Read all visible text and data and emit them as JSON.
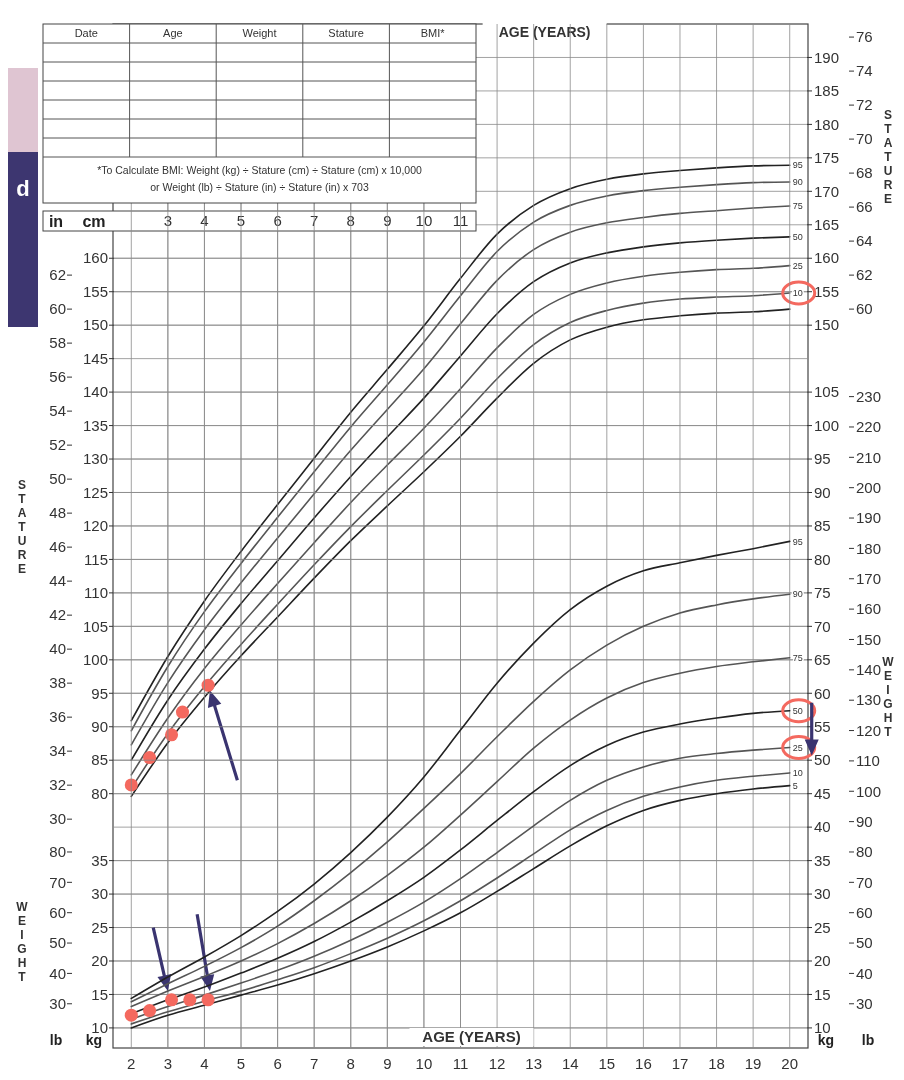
{
  "chart_data": [
    {
      "type": "line",
      "xlabel": "AGE (YEARS)",
      "ylabel": "STATURE",
      "x": [
        2,
        3,
        4,
        5,
        6,
        7,
        8,
        9,
        10,
        11,
        12,
        13,
        14,
        15,
        16,
        17,
        18,
        19,
        20
      ],
      "xlim": [
        1.5,
        20.5
      ],
      "xticks": [
        3,
        4,
        5,
        6,
        7,
        8,
        9,
        10,
        11
      ],
      "ylim": [
        42,
        195
      ],
      "yticks": [
        80,
        85,
        90,
        95,
        100,
        105,
        110,
        115,
        120,
        125,
        130,
        135,
        140,
        145,
        150,
        155,
        160
      ],
      "y2lim": [
        42,
        195
      ],
      "y2ticks": [
        150,
        155,
        160,
        165,
        170,
        175,
        180,
        185,
        190
      ],
      "y3lim": [
        16.54,
        76.77
      ],
      "y3ticks": [
        30,
        32,
        34,
        36,
        38,
        40,
        42,
        44,
        46,
        48,
        50,
        52,
        54,
        56,
        58,
        60,
        62
      ],
      "grid": true,
      "marker": "none",
      "line_style": "solid",
      "annotations": [
        "in",
        "cm",
        "d"
      ],
      "series": [
        {
          "name": "95",
          "color": "#222222",
          "values": [
            90.9,
            100.5,
            108.8,
            116.2,
            123.2,
            130.1,
            137.0,
            143.4,
            149.9,
            157.0,
            163.6,
            167.9,
            170.4,
            171.8,
            172.6,
            173.1,
            173.5,
            173.8,
            173.9
          ]
        },
        {
          "name": "90",
          "color": "#555555",
          "values": [
            89.4,
            99.0,
            107.2,
            114.4,
            121.3,
            128.1,
            134.8,
            141.1,
            147.5,
            154.4,
            161.0,
            165.4,
            167.9,
            169.3,
            170.1,
            170.6,
            171.0,
            171.3,
            171.4
          ]
        },
        {
          "name": "75",
          "color": "#555555",
          "values": [
            87.3,
            96.6,
            104.5,
            111.5,
            118.2,
            124.8,
            131.3,
            137.4,
            143.5,
            150.2,
            156.7,
            161.3,
            163.9,
            165.3,
            166.1,
            166.7,
            167.1,
            167.5,
            167.8
          ]
        },
        {
          "name": "50",
          "color": "#222222",
          "values": [
            85.0,
            94.0,
            101.6,
            108.4,
            114.8,
            121.2,
            127.4,
            133.3,
            139.1,
            145.4,
            151.7,
            156.5,
            159.3,
            160.8,
            161.7,
            162.3,
            162.7,
            163.0,
            163.2
          ]
        },
        {
          "name": "25",
          "color": "#555555",
          "values": [
            82.8,
            91.3,
            98.7,
            105.2,
            111.4,
            117.5,
            123.5,
            129.1,
            134.6,
            140.5,
            146.6,
            151.6,
            154.6,
            156.3,
            157.3,
            157.9,
            158.3,
            158.5,
            158.9
          ]
        },
        {
          "name": "10",
          "color": "#555555",
          "values": [
            80.8,
            89.0,
            96.0,
            102.3,
            108.3,
            114.2,
            119.9,
            125.3,
            130.6,
            136.1,
            142.0,
            147.1,
            150.4,
            152.2,
            153.3,
            153.9,
            154.2,
            154.4,
            154.8
          ]
        },
        {
          "color": "#222222",
          "values": [
            79.6,
            87.6,
            94.4,
            100.6,
            106.4,
            112.2,
            117.8,
            123.0,
            128.1,
            133.4,
            139.1,
            144.3,
            147.8,
            149.7,
            150.8,
            151.4,
            151.8,
            152.0,
            152.4
          ]
        },
        {
          "type": "scatter",
          "marker": "circle",
          "color": "#f4695f",
          "x": [
            2.0,
            2.5,
            3.1,
            3.4,
            4.1
          ],
          "values": [
            81.3,
            85.4,
            88.8,
            92.2,
            96.2
          ]
        }
      ]
    },
    {
      "type": "line",
      "xlabel": "AGE (YEARS)",
      "y2label": "WEIGHT",
      "x": [
        2,
        3,
        4,
        5,
        6,
        7,
        8,
        9,
        10,
        11,
        12,
        13,
        14,
        15,
        16,
        17,
        18,
        19,
        20
      ],
      "xlim": [
        1.5,
        20.5
      ],
      "xticks": [
        2,
        3,
        4,
        5,
        6,
        7,
        8,
        9,
        10,
        11,
        12,
        13,
        14,
        15,
        16,
        17,
        18,
        19,
        20
      ],
      "ylim": [
        7,
        160
      ],
      "yticks": [
        10,
        15,
        20,
        25,
        30,
        35
      ],
      "y2lim": [
        7,
        160
      ],
      "y2ticks": [
        10,
        15,
        20,
        25,
        30,
        35,
        40,
        45,
        50,
        55,
        60,
        65,
        70,
        75,
        80,
        85,
        90,
        95,
        100,
        105
      ],
      "y3lim": [
        15.43,
        352.74
      ],
      "y3ticks": [
        30,
        40,
        50,
        60,
        70,
        80,
        90,
        100,
        110,
        120,
        130,
        140,
        150,
        160,
        170,
        180,
        190,
        200,
        210,
        220,
        230
      ],
      "grid": true,
      "marker": "none",
      "line_style": "solid",
      "annotations": [
        "lb",
        "kg",
        "kg",
        "lb"
      ],
      "series": [
        {
          "name": "95",
          "color": "#222222",
          "values": [
            14.4,
            17.6,
            20.6,
            23.8,
            27.4,
            31.5,
            36.2,
            41.5,
            47.5,
            54.5,
            61.5,
            67.5,
            72.5,
            76.0,
            78.3,
            79.5,
            80.6,
            81.6,
            82.7
          ]
        },
        {
          "name": "90",
          "color": "#555555",
          "values": [
            13.9,
            16.6,
            19.2,
            22.0,
            25.2,
            29.0,
            33.2,
            37.8,
            42.8,
            48.0,
            53.5,
            58.8,
            63.5,
            67.2,
            70.0,
            72.0,
            73.2,
            74.1,
            74.8
          ]
        },
        {
          "name": "75",
          "color": "#555555",
          "values": [
            13.2,
            15.5,
            17.7,
            20.0,
            22.6,
            25.6,
            29.0,
            32.8,
            37.0,
            41.8,
            46.8,
            51.8,
            56.0,
            59.3,
            61.6,
            63.0,
            64.0,
            64.7,
            65.3
          ]
        },
        {
          "name": "50",
          "color": "#222222",
          "values": [
            12.1,
            14.2,
            16.1,
            18.2,
            20.4,
            22.9,
            25.8,
            29.0,
            32.5,
            36.6,
            41.0,
            45.3,
            49.2,
            52.2,
            54.2,
            55.4,
            56.3,
            57.0,
            57.4
          ]
        },
        {
          "name": "25",
          "color": "#555555",
          "values": [
            11.3,
            13.2,
            14.9,
            16.7,
            18.6,
            20.7,
            23.1,
            25.8,
            28.8,
            32.3,
            36.2,
            40.2,
            44.0,
            47.0,
            49.0,
            50.3,
            51.0,
            51.5,
            51.9
          ]
        },
        {
          "name": "10",
          "color": "#555555",
          "values": [
            10.6,
            12.4,
            14.0,
            15.5,
            17.2,
            19.0,
            21.1,
            23.4,
            26.0,
            29.0,
            32.4,
            36.0,
            39.6,
            42.5,
            44.6,
            46.0,
            47.0,
            47.6,
            48.1
          ]
        },
        {
          "name": "5",
          "color": "#222222",
          "values": [
            10.0,
            11.9,
            13.4,
            14.9,
            16.4,
            18.1,
            20.0,
            22.1,
            24.5,
            27.2,
            30.4,
            33.8,
            37.2,
            40.2,
            42.5,
            44.0,
            45.0,
            45.7,
            46.2
          ]
        },
        {
          "type": "scatter",
          "marker": "circle",
          "color": "#f4695f",
          "x": [
            2.0,
            2.5,
            3.1,
            3.6,
            4.1
          ],
          "values": [
            11.9,
            12.6,
            14.2,
            14.2,
            14.2
          ]
        }
      ]
    },
    {
      "type": "line",
      "y2label": "STATURE",
      "xlim": [
        1.5,
        20.5
      ],
      "y2lim": [
        16.54,
        76.77
      ],
      "y2ticks": [
        60,
        62,
        64,
        66,
        68,
        70,
        72,
        74,
        76
      ],
      "tick_labels": "y"
    },
    {
      "type": "line",
      "ylabel": "WEIGHT",
      "xlim": [
        1.5,
        20.5
      ],
      "ylim": [
        15.43,
        352.74
      ],
      "yticks": [
        30,
        40,
        50,
        60,
        70,
        80
      ],
      "tick_labels": "y"
    },
    {
      "type": "other",
      "categories": [
        "Date",
        "Age",
        "Weight",
        "Stature",
        "BMI*"
      ],
      "annotations": [
        "*To Calculate BMI: Weight (kg) ÷ Stature (cm) ÷ Stature (cm) x 10,000",
        "or Weight (lb) ÷ Stature (in) ÷ Stature (in) x 703"
      ]
    }
  ]
}
